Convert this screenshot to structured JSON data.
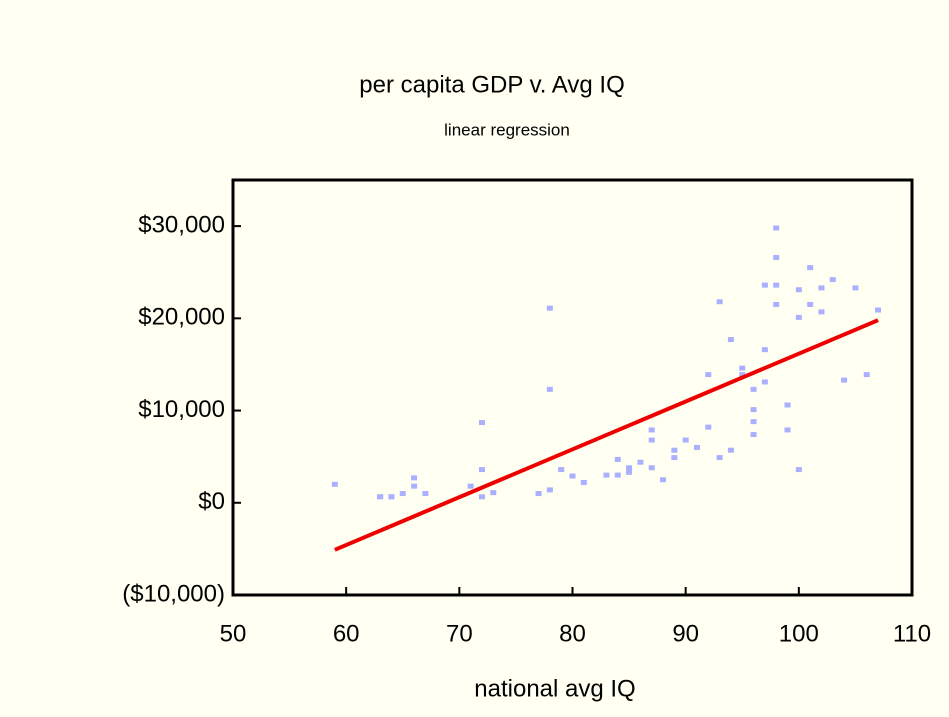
{
  "chart_data": {
    "type": "scatter",
    "title": "per capita GDP v. Avg IQ",
    "subtitle": "linear regression",
    "x_label": "national avg IQ",
    "xlim": [
      50,
      110
    ],
    "xticks": [
      50,
      60,
      70,
      80,
      90,
      100,
      110
    ],
    "ylim": [
      -10000,
      35000
    ],
    "yticks": [
      {
        "value": -10000,
        "label": "($10,000)"
      },
      {
        "value": 0,
        "label": "$0"
      },
      {
        "value": 10000,
        "label": "$10,000"
      },
      {
        "value": 20000,
        "label": "$20,000"
      },
      {
        "value": 30000,
        "label": "$30,000"
      }
    ],
    "points": {
      "color": "#aab0ff",
      "x": [
        59,
        63,
        63,
        64,
        64,
        65,
        66,
        66,
        67,
        71,
        72,
        72,
        72,
        73,
        77,
        78,
        78,
        78,
        79,
        80,
        81,
        83,
        84,
        84,
        85,
        85,
        86,
        87,
        87,
        87,
        88,
        89,
        89,
        90,
        91,
        92,
        92,
        93,
        93,
        94,
        94,
        95,
        95,
        96,
        96,
        96,
        96,
        97,
        97,
        97,
        98,
        98,
        98,
        98,
        99,
        99,
        100,
        100,
        100,
        101,
        101,
        102,
        102,
        103,
        104,
        105,
        106,
        107
      ],
      "values": [
        2000,
        650,
        650,
        650,
        650,
        1000,
        2700,
        1800,
        1000,
        1800,
        3600,
        8700,
        650,
        1100,
        1000,
        1400,
        21100,
        12300,
        3600,
        2900,
        2200,
        3000,
        3000,
        4700,
        3800,
        3300,
        4400,
        3800,
        6800,
        7900,
        2500,
        4900,
        5700,
        6800,
        6000,
        8200,
        13900,
        21800,
        4900,
        17700,
        5700,
        14600,
        13900,
        10100,
        12300,
        8800,
        7400,
        23600,
        16600,
        13100,
        29800,
        26600,
        23600,
        21500,
        10600,
        7900,
        23100,
        20100,
        3600,
        25500,
        21500,
        23300,
        20700,
        24200,
        13300,
        23300,
        13900,
        20900
      ]
    },
    "regression": {
      "color": "#ee0000",
      "x": [
        59,
        107
      ],
      "values": [
        -5100,
        19800
      ]
    }
  }
}
